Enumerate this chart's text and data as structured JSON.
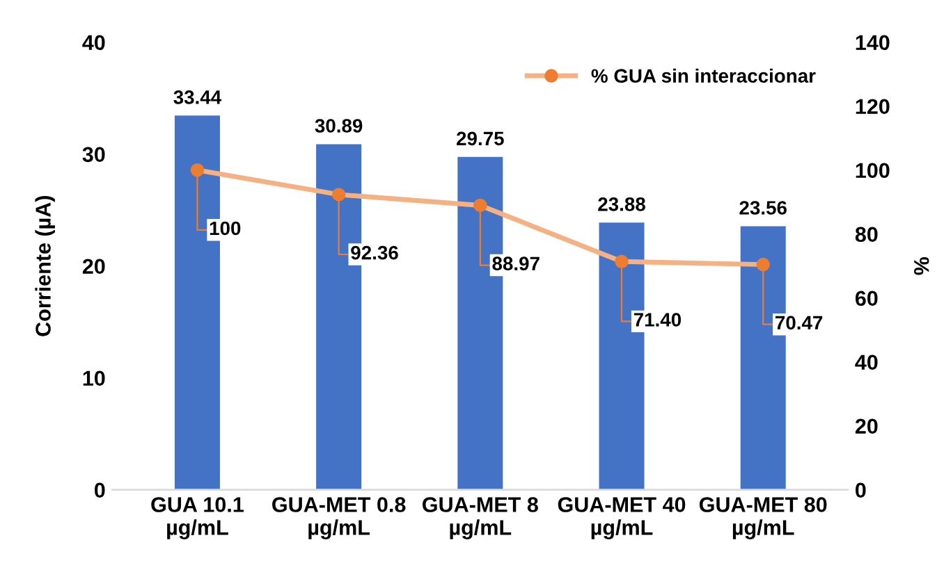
{
  "chart_data": {
    "type": "bar",
    "categories": [
      "GUA 10.1\nµg/mL",
      "GUA-MET 0.8\nµg/mL",
      "GUA-MET 8\nµg/mL",
      "GUA-MET 40\nµg/mL",
      "GUA-MET 80\nµg/mL"
    ],
    "ylabel": "Corriente (µA)",
    "y2label": "%",
    "ylim": [
      0,
      40
    ],
    "yticks": [
      0,
      10,
      20,
      30,
      40
    ],
    "y2lim": [
      0,
      140
    ],
    "y2ticks": [
      0,
      20,
      40,
      60,
      80,
      100,
      120,
      140
    ],
    "series": [
      {
        "color": "#4472c4",
        "values": [
          33.44,
          30.89,
          29.75,
          23.88,
          23.56
        ],
        "value_labels": [
          "33.44",
          "30.89",
          "29.75",
          "23.88",
          "23.56"
        ]
      },
      {
        "type": "line",
        "name": "% GUA sin interaccionar",
        "color": "#f4b183",
        "axis": "y2",
        "marker": "circle",
        "values": [
          100,
          92.36,
          88.97,
          71.4,
          70.47
        ],
        "value_labels": [
          "100",
          "92.36",
          "88.97",
          "71.40",
          "70.47"
        ]
      }
    ],
    "legend": "top right",
    "grid": false
  }
}
